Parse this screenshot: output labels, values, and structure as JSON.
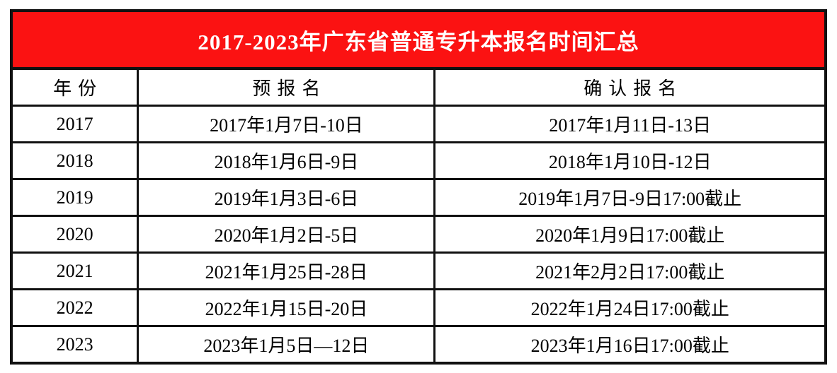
{
  "banner": {
    "title": "2017-2023年广东省普通专升本报名时间汇总",
    "bg_color": "#fb1212",
    "text_color": "#ffffff"
  },
  "colors": {
    "border": "#111111",
    "body_text": "#000000",
    "page_bg": "#ffffff"
  },
  "table": {
    "columns": [
      "年份",
      "预报名",
      "确认报名"
    ],
    "rows": [
      {
        "year": "2017",
        "pre": "2017年1月7日-10日",
        "confirm": "2017年1月11日-13日"
      },
      {
        "year": "2018",
        "pre": "2018年1月6日-9日",
        "confirm": "2018年1月10日-12日"
      },
      {
        "year": "2019",
        "pre": "2019年1月3日-6日",
        "confirm": "2019年1月7日-9日17:00截止"
      },
      {
        "year": "2020",
        "pre": "2020年1月2日-5日",
        "confirm": "2020年1月9日17:00截止"
      },
      {
        "year": "2021",
        "pre": "2021年1月25日-28日",
        "confirm": "2021年2月2日17:00截止"
      },
      {
        "year": "2022",
        "pre": "2022年1月15日-20日",
        "confirm": "2022年1月24日17:00截止"
      },
      {
        "year": "2023",
        "pre": "2023年1月5日—12日",
        "confirm": "2023年1月16日17:00截止"
      }
    ]
  }
}
